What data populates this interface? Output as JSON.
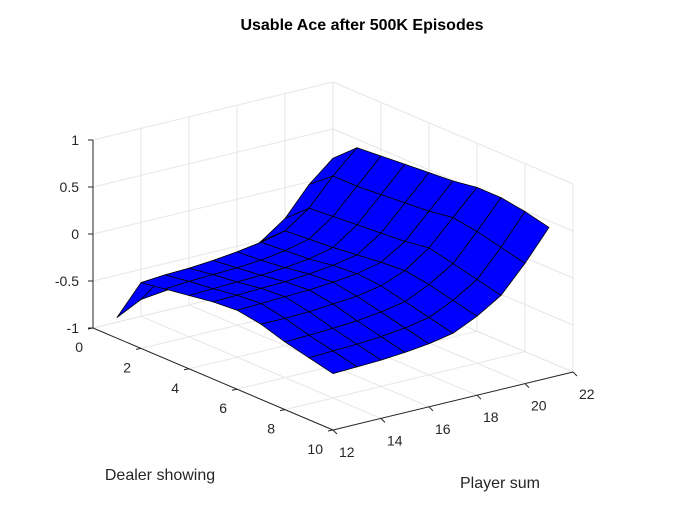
{
  "chart_data": {
    "type": "surface",
    "title": "Usable Ace after 500K Episodes",
    "xlabel": "Player sum",
    "ylabel": "Dealer showing",
    "zlabel": "",
    "xlim": [
      12,
      22
    ],
    "ylim": [
      0,
      10
    ],
    "zlim": [
      -1,
      1
    ],
    "xticks": [
      12,
      14,
      16,
      18,
      20,
      22
    ],
    "yticks": [
      0,
      2,
      4,
      6,
      8,
      10
    ],
    "zticks": [
      -1,
      -0.5,
      0,
      0.5,
      1
    ],
    "ztick_labels": [
      "-1",
      "-0.5",
      "0",
      "0.5",
      "1"
    ],
    "grid": true,
    "surface_color": "#0000ff",
    "edge_color": "#000000",
    "x": [
      12,
      13,
      14,
      15,
      16,
      17,
      18,
      19,
      20,
      21
    ],
    "y": [
      1,
      2,
      3,
      4,
      5,
      6,
      7,
      8,
      9,
      10
    ],
    "z": [
      [
        -0.78,
        -0.65,
        -0.62,
        -0.6,
        -0.52,
        -0.46,
        -0.34,
        -0.16,
        0.14,
        0.36
      ],
      [
        -0.3,
        -0.28,
        -0.27,
        -0.25,
        -0.22,
        -0.18,
        -0.12,
        0.06,
        0.34,
        0.58
      ],
      [
        -0.26,
        -0.24,
        -0.23,
        -0.22,
        -0.2,
        -0.16,
        -0.1,
        0.08,
        0.34,
        0.6
      ],
      [
        -0.22,
        -0.21,
        -0.2,
        -0.19,
        -0.17,
        -0.14,
        -0.08,
        0.1,
        0.36,
        0.62
      ],
      [
        -0.18,
        -0.17,
        -0.16,
        -0.15,
        -0.13,
        -0.1,
        -0.05,
        0.12,
        0.38,
        0.64
      ],
      [
        -0.16,
        -0.15,
        -0.14,
        -0.13,
        -0.11,
        -0.08,
        -0.02,
        0.14,
        0.4,
        0.66
      ],
      [
        -0.2,
        -0.2,
        -0.19,
        -0.17,
        -0.15,
        -0.1,
        0.0,
        0.18,
        0.44,
        0.7
      ],
      [
        -0.28,
        -0.27,
        -0.26,
        -0.24,
        -0.21,
        -0.16,
        -0.04,
        0.12,
        0.4,
        0.7
      ],
      [
        -0.34,
        -0.33,
        -0.32,
        -0.3,
        -0.27,
        -0.22,
        -0.1,
        0.06,
        0.34,
        0.66
      ],
      [
        -0.4,
        -0.39,
        -0.38,
        -0.36,
        -0.33,
        -0.28,
        -0.16,
        0.0,
        0.28,
        0.6
      ]
    ]
  }
}
